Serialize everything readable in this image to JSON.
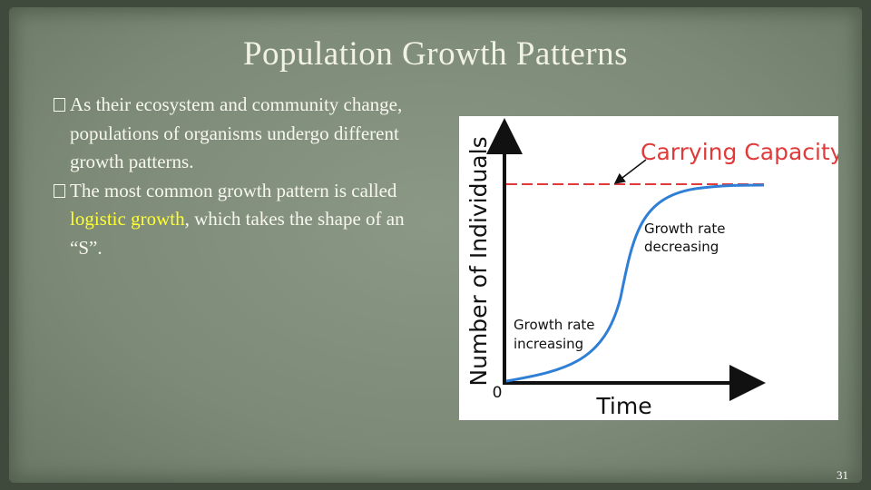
{
  "title": "Population Growth Patterns",
  "bullets": [
    {
      "parts": [
        "As their ecosystem and community change, populations of organisms undergo different growth patterns."
      ]
    },
    {
      "parts": [
        "The most common growth pattern is called ",
        "logistic growth",
        ", which takes the shape of an “S”."
      ]
    }
  ],
  "figure": {
    "y_axis_label": "Number of Individuals",
    "x_axis_label": "Time",
    "origin_label": "0",
    "carrying_capacity": "Carrying Capacity",
    "decreasing_label": [
      "Growth rate",
      "decreasing"
    ],
    "increasing_label": [
      "Growth rate",
      "increasing"
    ]
  },
  "slide_number": "31"
}
